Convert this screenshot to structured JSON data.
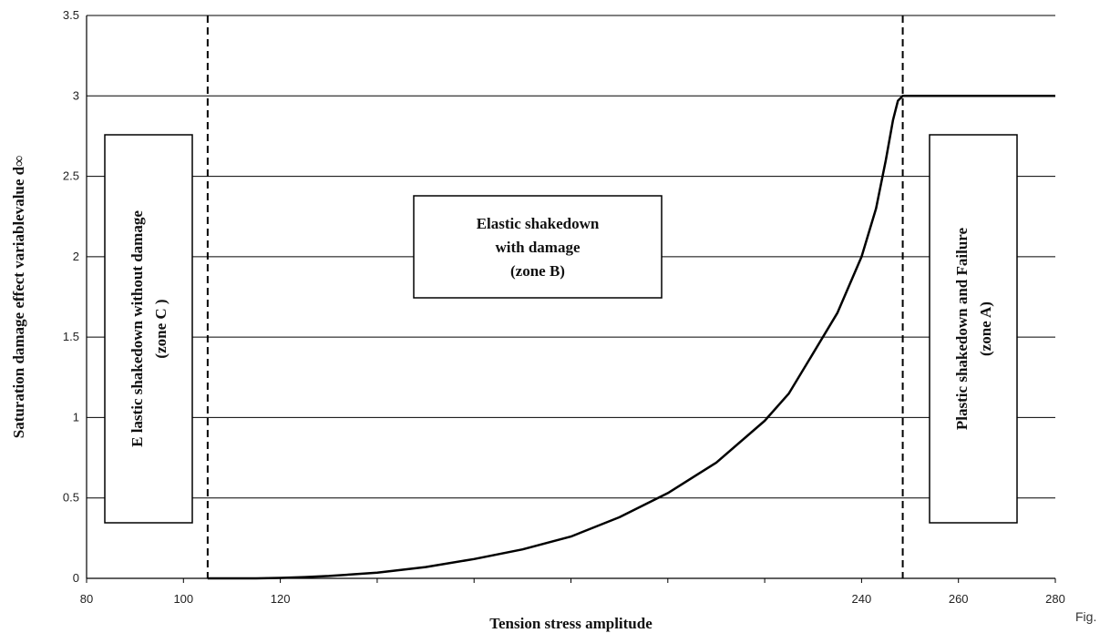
{
  "chart_data": {
    "type": "line",
    "xlabel": "Tension stress amplitude",
    "ylabel": "Saturation damage effect variablevalue d∞",
    "xlim": [
      80,
      280
    ],
    "ylim": [
      0,
      3.5
    ],
    "x_ticks": [
      80,
      100,
      120,
      240,
      260,
      280
    ],
    "y_ticks": [
      0,
      0.5,
      1,
      1.5,
      2,
      2.5,
      3,
      3.5
    ],
    "grid": "horizontal",
    "series": [
      {
        "x": [
          105,
          115,
          120,
          125,
          130,
          140,
          150,
          160,
          170,
          180,
          190,
          200,
          210,
          220,
          225,
          230,
          235,
          240,
          243,
          245,
          246.5,
          247.5,
          248.5,
          280
        ],
        "y": [
          0,
          0,
          0.003,
          0.008,
          0.015,
          0.035,
          0.07,
          0.12,
          0.18,
          0.26,
          0.38,
          0.53,
          0.72,
          0.98,
          1.15,
          1.4,
          1.65,
          2.0,
          2.3,
          2.6,
          2.85,
          2.97,
          3.0,
          3.0
        ]
      }
    ],
    "vertical_lines": [
      105,
      248.5
    ],
    "annotations": [
      {
        "label": [
          "Elastic shakedown",
          "with damage",
          "(zone B)"
        ],
        "zone": "B"
      },
      {
        "label": [
          "E lastic shakedown without damage",
          "(zone C )"
        ],
        "zone": "C"
      },
      {
        "label": [
          "Plastic shakedown and Failure",
          "(zone A)"
        ],
        "zone": "A"
      }
    ]
  },
  "caption": "Fig."
}
